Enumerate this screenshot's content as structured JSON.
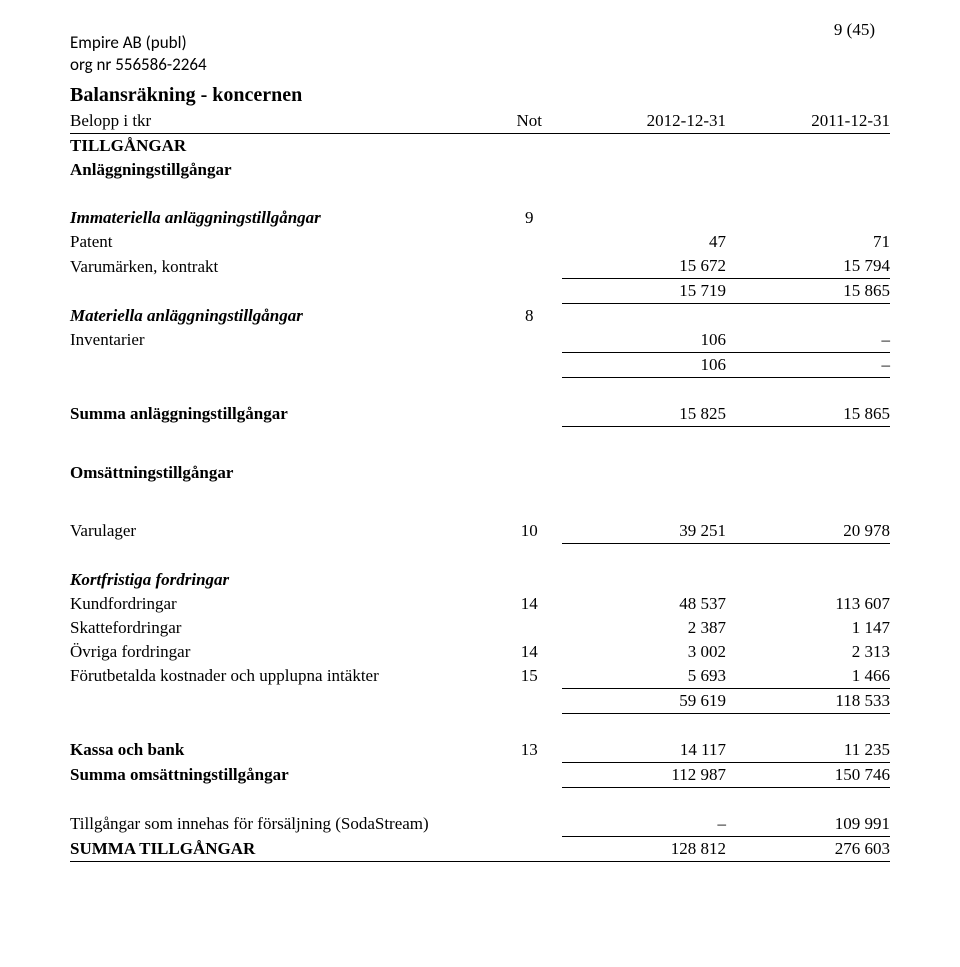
{
  "pagenum": "9 (45)",
  "company": {
    "name": "Empire AB (publ)",
    "org": "org nr 556586-2264"
  },
  "title": "Balansräkning - koncernen",
  "hdr": {
    "belopp": "Belopp i tkr",
    "not": "Not",
    "c1": "2012-12-31",
    "c2": "2011-12-31"
  },
  "sect": {
    "tillgangar": "TILLGÅNGAR",
    "anlagg": "Anläggningstillgångar",
    "immat": "Immateriella anläggningstillgångar",
    "mat": "Materiella anläggningstillgångar",
    "summa_anlagg": "Summa anläggningstillgångar",
    "omsatt": "Omsättningstillgångar",
    "kortfr": "Kortfristiga fordringar",
    "kassa": "Kassa och bank",
    "summa_omsatt": "Summa omsättningstillgångar",
    "soda": "Tillgångar som innehas för försäljning (SodaStream)",
    "summa_tillg": "SUMMA TILLGÅNGAR"
  },
  "rows": {
    "immat_not": "9",
    "patent": {
      "l": "Patent",
      "v1": "47",
      "v2": "71"
    },
    "varum": {
      "l": "Varumärken, kontrakt",
      "v1": "15 672",
      "v2": "15 794"
    },
    "immat_sum": {
      "v1": "15 719",
      "v2": "15 865"
    },
    "mat_not": "8",
    "invent": {
      "l": "Inventarier",
      "v1": "106",
      "v2": "–"
    },
    "mat_sum": {
      "v1": "106",
      "v2": "–"
    },
    "summa_anlagg": {
      "v1": "15 825",
      "v2": "15 865"
    },
    "varulager": {
      "l": "Varulager",
      "not": "10",
      "v1": "39 251",
      "v2": "20 978"
    },
    "kundf": {
      "l": "Kundfordringar",
      "not": "14",
      "v1": "48 537",
      "v2": "113 607"
    },
    "skattef": {
      "l": "Skattefordringar",
      "v1": "2 387",
      "v2": "1 147"
    },
    "ovrigf": {
      "l": "Övriga fordringar",
      "not": "14",
      "v1": "3 002",
      "v2": "2 313"
    },
    "forut": {
      "l": "Förutbetalda kostnader och upplupna intäkter",
      "not": "15",
      "v1": "5 693",
      "v2": "1 466"
    },
    "kortfr_sum": {
      "v1": "59 619",
      "v2": "118 533"
    },
    "kassa": {
      "not": "13",
      "v1": "14 117",
      "v2": "11 235"
    },
    "summa_omsatt": {
      "v1": "112 987",
      "v2": "150 746"
    },
    "soda": {
      "v1": "–",
      "v2": "109 991"
    },
    "summa_tillg": {
      "v1": "128 812",
      "v2": "276 603"
    }
  }
}
